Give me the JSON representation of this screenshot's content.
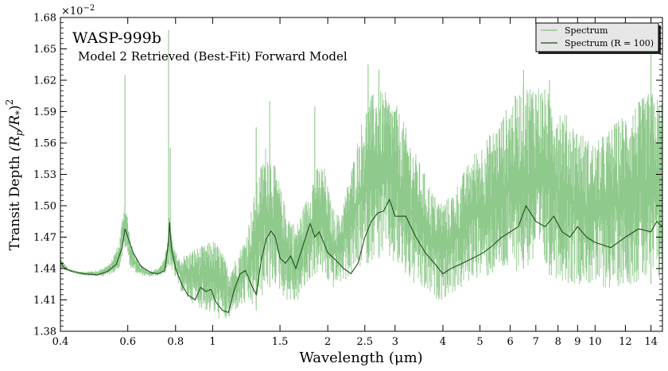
{
  "chart_data": {
    "type": "line",
    "title": "WASP-999b",
    "subtitle": "Model 2 Retrieved (Best-Fit) Forward Model",
    "xlabel": "Wavelength (μm)",
    "ylabel": "Transit Depth (Rp/R*)²",
    "ylabel_main": "Transit Depth ",
    "ylabel_math": "(R",
    "ylabel_math_sub_p": "p",
    "ylabel_math_mid": "/R",
    "ylabel_math_sub_s": "*",
    "ylabel_math_close": ")",
    "ylabel_math_sup": "2",
    "y_multiplier_base": "×10",
    "y_multiplier_exp": "−2",
    "x_scale": "log",
    "xlim": [
      0.4,
      15
    ],
    "ylim": [
      1.38,
      1.68
    ],
    "x_ticks": [
      0.4,
      0.6,
      0.8,
      1,
      1.5,
      2,
      2.5,
      3,
      4,
      5,
      6,
      7,
      8,
      9,
      10,
      12,
      14
    ],
    "x_tick_labels": [
      "0.4",
      "0.6",
      "0.8",
      "1",
      "1.5",
      "2",
      "2.5",
      "3",
      "4",
      "5",
      "6",
      "7",
      "8",
      "9",
      "10",
      "12",
      "14"
    ],
    "y_ticks": [
      1.38,
      1.41,
      1.44,
      1.47,
      1.5,
      1.53,
      1.56,
      1.59,
      1.62,
      1.65,
      1.68
    ],
    "y_tick_labels": [
      "1.38",
      "1.41",
      "1.44",
      "1.47",
      "1.50",
      "1.53",
      "1.56",
      "1.59",
      "1.62",
      "1.65",
      "1.68"
    ],
    "grid": false,
    "legend_position": "top-right",
    "series": [
      {
        "name": "Spectrum",
        "style": "band",
        "color": "#8fc98c",
        "envelope": {
          "x": [
            0.4,
            0.42,
            0.45,
            0.5,
            0.54,
            0.57,
            0.59,
            0.61,
            0.64,
            0.68,
            0.72,
            0.75,
            0.77,
            0.79,
            0.82,
            0.86,
            0.9,
            0.95,
            1.0,
            1.05,
            1.1,
            1.15,
            1.22,
            1.3,
            1.38,
            1.45,
            1.55,
            1.65,
            1.75,
            1.85,
            1.95,
            2.05,
            2.15,
            2.25,
            2.35,
            2.45,
            2.55,
            2.65,
            2.8,
            3.0,
            3.2,
            3.4,
            3.6,
            3.8,
            4.0,
            4.2,
            4.5,
            4.8,
            5.2,
            5.6,
            6.0,
            6.5,
            7.0,
            7.5,
            8.0,
            8.5,
            9.0,
            9.5,
            10.0,
            11.0,
            12.0,
            13.0,
            14.0,
            15.0
          ],
          "upper": [
            1.45,
            1.44,
            1.437,
            1.438,
            1.445,
            1.465,
            1.51,
            1.465,
            1.445,
            1.438,
            1.44,
            1.45,
            1.49,
            1.46,
            1.45,
            1.455,
            1.46,
            1.462,
            1.468,
            1.46,
            1.44,
            1.45,
            1.47,
            1.52,
            1.56,
            1.54,
            1.5,
            1.48,
            1.505,
            1.535,
            1.54,
            1.5,
            1.49,
            1.52,
            1.55,
            1.58,
            1.6,
            1.61,
            1.61,
            1.6,
            1.575,
            1.55,
            1.53,
            1.51,
            1.505,
            1.51,
            1.53,
            1.55,
            1.565,
            1.58,
            1.6,
            1.615,
            1.62,
            1.61,
            1.6,
            1.585,
            1.575,
            1.565,
            1.56,
            1.575,
            1.59,
            1.6,
            1.61,
            1.6
          ],
          "lower": [
            1.44,
            1.437,
            1.434,
            1.432,
            1.434,
            1.44,
            1.46,
            1.44,
            1.434,
            1.432,
            1.433,
            1.435,
            1.445,
            1.435,
            1.42,
            1.41,
            1.405,
            1.4,
            1.395,
            1.39,
            1.39,
            1.4,
            1.405,
            1.4,
            1.42,
            1.425,
            1.41,
            1.405,
            1.42,
            1.435,
            1.43,
            1.42,
            1.425,
            1.43,
            1.435,
            1.44,
            1.445,
            1.45,
            1.45,
            1.44,
            1.43,
            1.42,
            1.415,
            1.41,
            1.41,
            1.415,
            1.42,
            1.43,
            1.43,
            1.435,
            1.435,
            1.44,
            1.44,
            1.435,
            1.43,
            1.425,
            1.425,
            1.425,
            1.42,
            1.42,
            1.425,
            1.425,
            1.425,
            1.425
          ]
        },
        "spikes": [
          {
            "x": 0.59,
            "y": 1.625
          },
          {
            "x": 0.767,
            "y": 1.668
          },
          {
            "x": 0.775,
            "y": 1.555
          },
          {
            "x": 1.3,
            "y": 1.575
          },
          {
            "x": 1.41,
            "y": 1.6
          },
          {
            "x": 1.85,
            "y": 1.595
          },
          {
            "x": 2.55,
            "y": 1.635
          },
          {
            "x": 2.72,
            "y": 1.63
          },
          {
            "x": 6.5,
            "y": 1.63
          },
          {
            "x": 7.6,
            "y": 1.62
          },
          {
            "x": 14.0,
            "y": 1.645
          }
        ]
      },
      {
        "name": "Spectrum (R = 100)",
        "style": "line",
        "color": "#1f4d1c",
        "x": [
          0.4,
          0.405,
          0.41,
          0.43,
          0.46,
          0.5,
          0.53,
          0.56,
          0.58,
          0.59,
          0.6,
          0.62,
          0.65,
          0.69,
          0.72,
          0.75,
          0.765,
          0.772,
          0.78,
          0.8,
          0.83,
          0.86,
          0.9,
          0.93,
          0.96,
          0.99,
          1.02,
          1.06,
          1.1,
          1.14,
          1.18,
          1.22,
          1.26,
          1.3,
          1.34,
          1.38,
          1.42,
          1.46,
          1.5,
          1.55,
          1.6,
          1.65,
          1.7,
          1.75,
          1.8,
          1.85,
          1.9,
          1.95,
          2.0,
          2.1,
          2.2,
          2.3,
          2.4,
          2.5,
          2.6,
          2.7,
          2.8,
          2.9,
          3.0,
          3.2,
          3.4,
          3.6,
          3.8,
          4.0,
          4.2,
          4.5,
          4.8,
          5.1,
          5.4,
          5.7,
          6.0,
          6.3,
          6.6,
          7.0,
          7.4,
          7.8,
          8.2,
          8.6,
          9.0,
          9.5,
          10.0,
          11.0,
          12.0,
          13.0,
          14.0,
          14.5,
          15.0
        ],
        "y": [
          1.447,
          1.443,
          1.44,
          1.437,
          1.435,
          1.434,
          1.437,
          1.444,
          1.46,
          1.478,
          1.47,
          1.455,
          1.442,
          1.436,
          1.435,
          1.438,
          1.462,
          1.484,
          1.46,
          1.44,
          1.425,
          1.415,
          1.41,
          1.422,
          1.418,
          1.42,
          1.408,
          1.4,
          1.398,
          1.42,
          1.435,
          1.438,
          1.425,
          1.415,
          1.448,
          1.468,
          1.476,
          1.47,
          1.45,
          1.445,
          1.452,
          1.44,
          1.455,
          1.47,
          1.483,
          1.47,
          1.475,
          1.465,
          1.455,
          1.448,
          1.44,
          1.435,
          1.445,
          1.47,
          1.485,
          1.493,
          1.495,
          1.506,
          1.49,
          1.49,
          1.47,
          1.455,
          1.445,
          1.435,
          1.44,
          1.445,
          1.45,
          1.455,
          1.462,
          1.47,
          1.475,
          1.48,
          1.5,
          1.485,
          1.48,
          1.49,
          1.475,
          1.47,
          1.48,
          1.47,
          1.465,
          1.46,
          1.47,
          1.478,
          1.475,
          1.485,
          1.48
        ]
      }
    ]
  }
}
